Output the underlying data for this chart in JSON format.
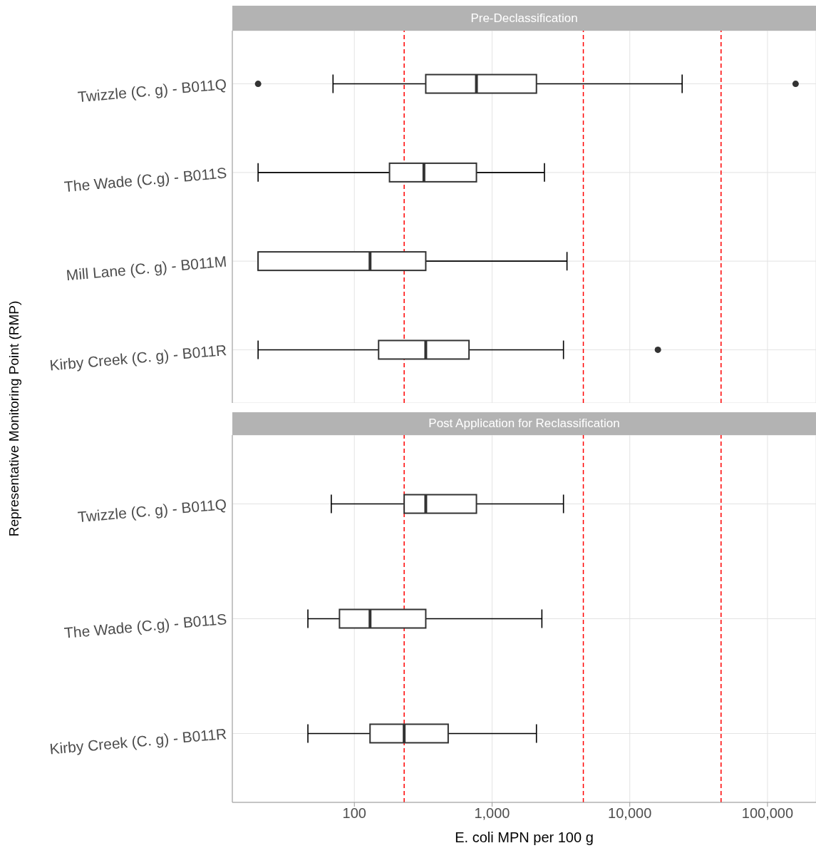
{
  "chart_data": [
    {
      "type": "box",
      "orientation": "horizontal",
      "title": "Pre-Declassification",
      "ylabel": "Representative Monitoring Point (RMP)",
      "categories": [
        "Twizzle (C. g) - B011Q",
        "The Wade (C.g) - B011S",
        "Mill Lane (C. g) - B011M",
        "Kirby Creek (C. g) - B011R"
      ],
      "boxes": [
        {
          "low": 70,
          "q1": 330,
          "median": 770,
          "q3": 2100,
          "high": 24000,
          "outliers": [
            20,
            160000
          ]
        },
        {
          "low": 20,
          "q1": 180,
          "median": 320,
          "q3": 770,
          "high": 2400
        },
        {
          "low": 20,
          "q1": 20,
          "median": 130,
          "q3": 330,
          "high": 3500
        },
        {
          "low": 20,
          "q1": 150,
          "median": 330,
          "q3": 680,
          "high": 3300,
          "outliers": [
            16000
          ]
        }
      ],
      "xlim": [
        13,
        225000
      ],
      "xticks": [
        100,
        1000,
        10000,
        100000
      ],
      "log": "x",
      "grid": true,
      "tick_labels": "y",
      "ref_lines": [
        {
          "axis": "x",
          "value": 230,
          "color": "#ff0000",
          "line_style": "dashed"
        },
        {
          "axis": "x",
          "value": 4600,
          "color": "#ff0000",
          "line_style": "dashed"
        },
        {
          "axis": "x",
          "value": 46000,
          "color": "#ff0000",
          "line_style": "dashed"
        }
      ]
    },
    {
      "type": "box",
      "orientation": "horizontal",
      "title": "Post Application for Reclassification",
      "xlabel": "E. coli MPN per 100 g",
      "categories": [
        "Twizzle (C. g) - B011Q",
        "The Wade (C.g) - B011S",
        "Kirby Creek (C. g) - B011R"
      ],
      "boxes": [
        {
          "low": 68,
          "q1": 230,
          "median": 330,
          "q3": 770,
          "high": 3300
        },
        {
          "low": 46,
          "q1": 78,
          "median": 130,
          "q3": 330,
          "high": 2300
        },
        {
          "low": 46,
          "q1": 130,
          "median": 230,
          "q3": 480,
          "high": 2100
        }
      ],
      "xlim": [
        13,
        225000
      ],
      "xticks": [
        100,
        {
          "value": 1000,
          "label": "1,000"
        },
        {
          "value": 10000,
          "label": "10,000"
        },
        {
          "value": 100000,
          "label": "100,000"
        }
      ],
      "log": "x",
      "grid": true,
      "ref_lines": [
        {
          "axis": "x",
          "value": 230,
          "color": "#ff0000",
          "line_style": "dashed"
        },
        {
          "axis": "x",
          "value": 4600,
          "color": "#ff0000",
          "line_style": "dashed"
        },
        {
          "axis": "x",
          "value": 46000,
          "color": "#ff0000",
          "line_style": "dashed"
        }
      ]
    }
  ]
}
